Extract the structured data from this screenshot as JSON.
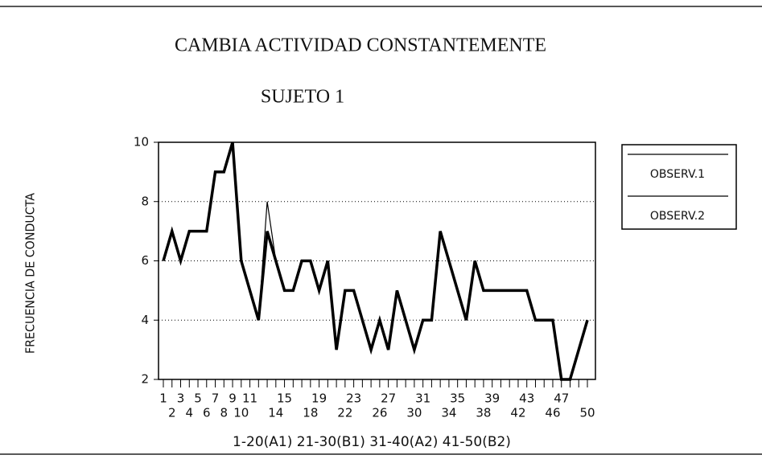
{
  "chart_data": {
    "type": "line",
    "title": "CAMBIA ACTIVIDAD CONSTANTEMENTE",
    "subtitle": "SUJETO 1",
    "y_label": "FRECUENCIA DE CONDUCTA",
    "x_label": "1-20(A1) 21-30(B1) 31-40(A2) 41-50(B2)",
    "x": [
      1,
      2,
      3,
      4,
      5,
      6,
      7,
      8,
      9,
      10,
      11,
      12,
      13,
      14,
      15,
      16,
      17,
      18,
      19,
      20,
      21,
      22,
      23,
      24,
      25,
      26,
      27,
      28,
      29,
      30,
      31,
      32,
      33,
      34,
      35,
      36,
      37,
      38,
      39,
      40,
      41,
      42,
      43,
      44,
      45,
      46,
      47,
      48,
      49,
      50
    ],
    "series": [
      {
        "name": "OBSERV.1",
        "color": "#000000",
        "values": [
          6,
          7,
          6,
          7,
          7,
          7,
          9,
          9,
          10,
          6,
          5,
          4,
          7,
          6,
          5,
          5,
          6,
          6,
          5,
          6,
          3,
          5,
          5,
          4,
          3,
          4,
          3,
          5,
          4,
          3,
          4,
          4,
          7,
          6,
          5,
          4,
          6,
          5,
          5,
          5,
          5,
          5,
          5,
          4,
          4,
          4,
          2,
          2,
          3,
          4
        ]
      },
      {
        "name": "OBSERV.2",
        "color": "#000000",
        "values": [
          6,
          7,
          6,
          7,
          7,
          7,
          9,
          9,
          10,
          6,
          5,
          4,
          8,
          6,
          5,
          5,
          6,
          6,
          5,
          6,
          3,
          5,
          5,
          4,
          3,
          4,
          3,
          5,
          4,
          3,
          4,
          4,
          7,
          6,
          5,
          4,
          6,
          5,
          5,
          5,
          5,
          5,
          5,
          4,
          4,
          4,
          2,
          2,
          3,
          4
        ]
      }
    ],
    "xlim": [
      1,
      50
    ],
    "xticks": [
      1,
      2,
      3,
      4,
      5,
      6,
      7,
      8,
      9,
      10,
      11,
      14,
      15,
      18,
      19,
      22,
      23,
      26,
      27,
      30,
      31,
      34,
      35,
      38,
      39,
      42,
      43,
      46,
      47,
      50
    ],
    "ylim": [
      2,
      10
    ],
    "yticks": [
      2,
      4,
      6,
      8,
      10
    ],
    "grid": true,
    "legend": "right"
  }
}
